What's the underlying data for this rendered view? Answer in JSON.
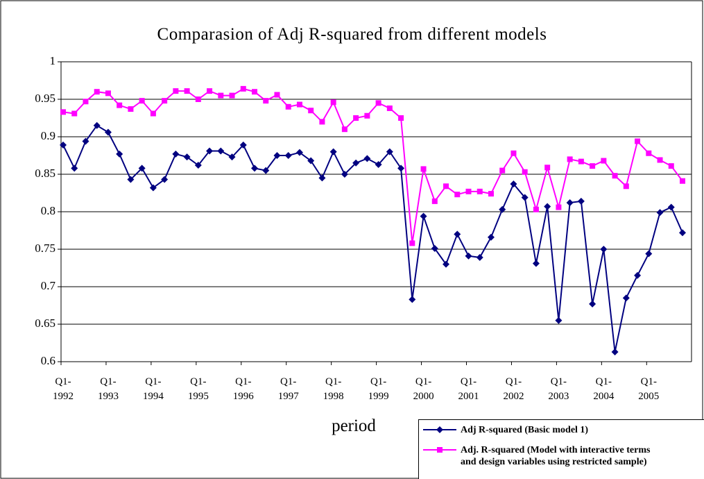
{
  "chart_data": {
    "type": "line",
    "title": "Comparasion of Adj R-squared from different models",
    "x_label": "period",
    "categories": [
      "Q1-\n1992",
      null,
      null,
      null,
      "Q1-\n1993",
      null,
      null,
      null,
      "Q1-\n1994",
      null,
      null,
      null,
      "Q1-\n1995",
      null,
      null,
      null,
      "Q1-\n1996",
      null,
      null,
      null,
      "Q1-\n1997",
      null,
      null,
      null,
      "Q1-\n1998",
      null,
      null,
      null,
      "Q1-\n1999",
      null,
      null,
      null,
      "Q1-\n2000",
      null,
      null,
      null,
      "Q1-\n2001",
      null,
      null,
      null,
      "Q1-\n2002",
      null,
      null,
      null,
      "Q1-\n2003",
      null,
      null,
      null,
      "Q1-\n2004",
      null,
      null,
      null,
      "Q1-\n2005",
      null,
      null,
      null
    ],
    "series": [
      {
        "name": "Adj R-squared (Basic model 1)",
        "color": "#000080",
        "marker": "diamond",
        "values": [
          0.889,
          0.858,
          0.894,
          0.915,
          0.906,
          0.877,
          0.843,
          0.858,
          0.832,
          0.843,
          0.877,
          0.873,
          0.862,
          0.881,
          0.881,
          0.873,
          0.889,
          0.858,
          0.855,
          0.875,
          0.875,
          0.879,
          0.868,
          0.845,
          0.88,
          0.85,
          0.865,
          0.871,
          0.863,
          0.88,
          0.858,
          0.683,
          0.794,
          0.751,
          0.73,
          0.77,
          0.741,
          0.739,
          0.766,
          0.803,
          0.837,
          0.819,
          0.731,
          0.807,
          0.655,
          0.812,
          0.814,
          0.677,
          0.75,
          0.613,
          0.685,
          0.715,
          0.744,
          0.799,
          0.806,
          0.772
        ]
      },
      {
        "name": "Adj. R-squared (Model with interactive terms\nand design variables using restricted sample)",
        "color": "#ff00ff",
        "marker": "square",
        "values": [
          0.933,
          0.931,
          0.947,
          0.96,
          0.958,
          0.942,
          0.937,
          0.948,
          0.931,
          0.948,
          0.961,
          0.961,
          0.95,
          0.961,
          0.955,
          0.955,
          0.964,
          0.96,
          0.948,
          0.956,
          0.94,
          0.943,
          0.935,
          0.92,
          0.946,
          0.91,
          0.925,
          0.928,
          0.945,
          0.938,
          0.925,
          0.758,
          0.857,
          0.814,
          0.834,
          0.823,
          0.827,
          0.827,
          0.824,
          0.855,
          0.878,
          0.853,
          0.803,
          0.859,
          0.806,
          0.87,
          0.867,
          0.861,
          0.868,
          0.848,
          0.834,
          0.894,
          0.878,
          0.869,
          0.861,
          0.841
        ]
      }
    ],
    "ylim": [
      0.6,
      1
    ],
    "yticks": [
      0.6,
      0.65,
      0.7,
      0.75,
      0.8,
      0.85,
      0.9,
      0.95,
      1
    ],
    "grid": true,
    "legend": "lower right"
  }
}
